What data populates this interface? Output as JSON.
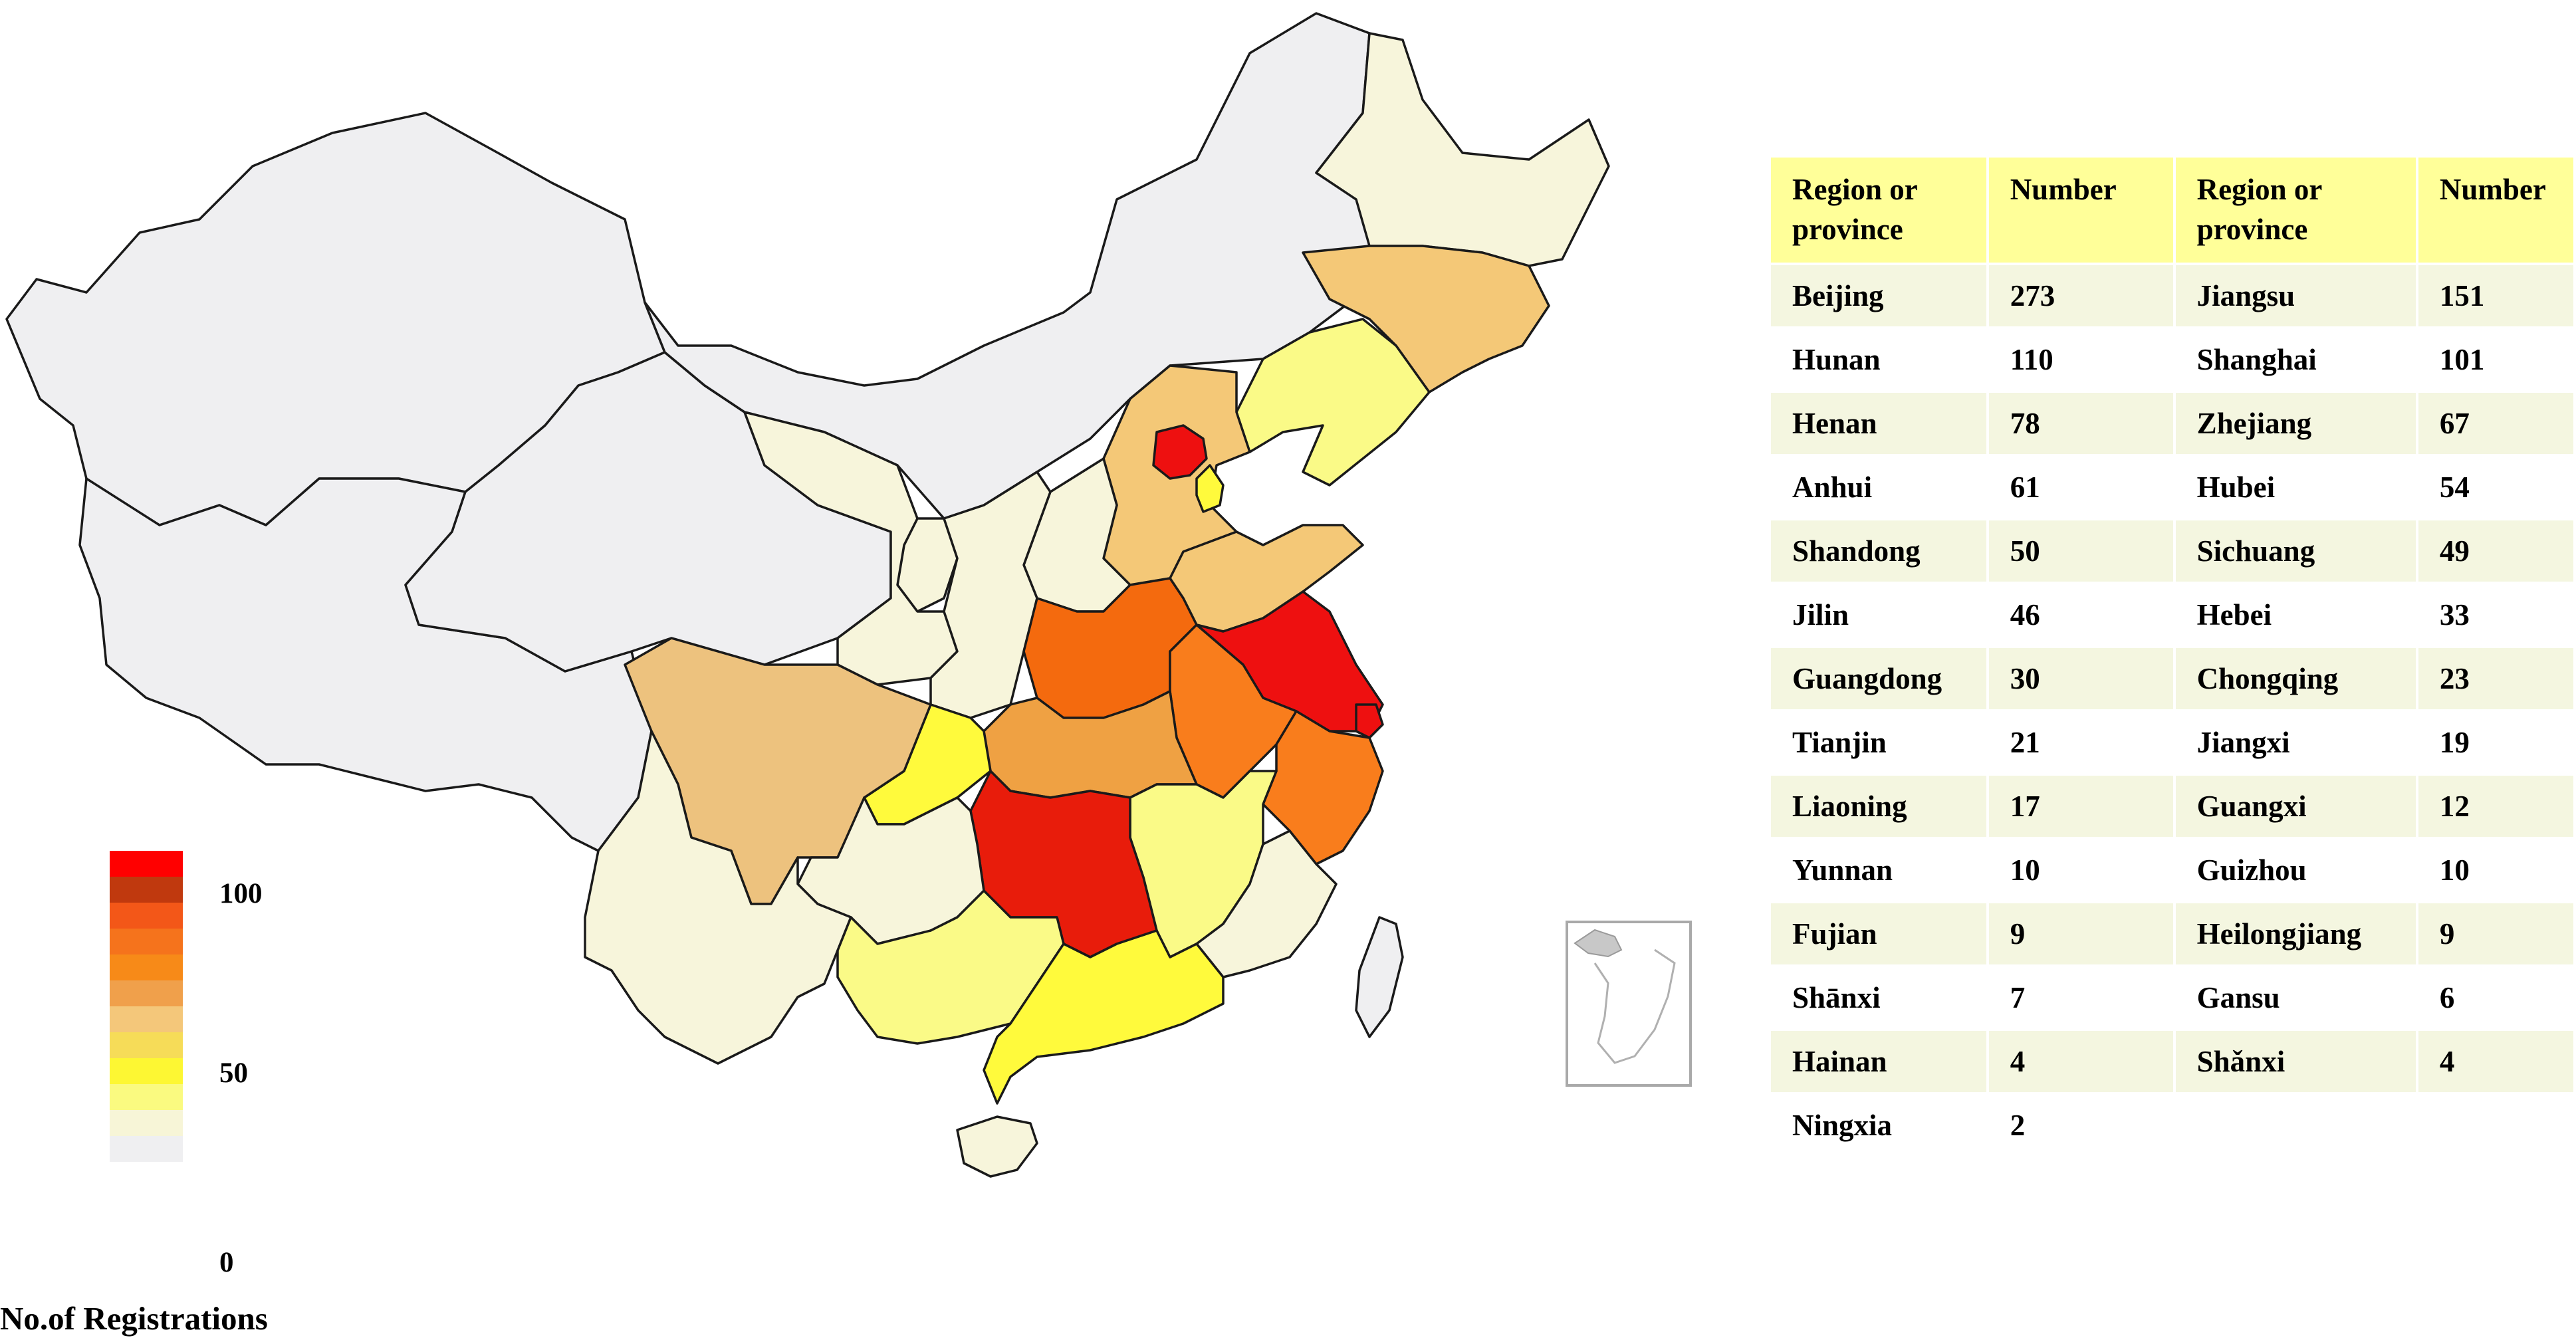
{
  "map": {
    "colors": {
      "no_data": "#efeff1",
      "c2_9": "#f7f5db",
      "c10_20": "#fafa87",
      "c21_30": "#fffa3c",
      "c31_50": "#f4c877",
      "c49": "#edc27e",
      "c54_61": "#efa143",
      "c61_78": "#f97d1c",
      "c78": "#f46a0e",
      "c110": "#e81c0b",
      "c150": "#ee1010",
      "c273": "#ee1010"
    }
  },
  "legend": {
    "title": "No.of Registrations",
    "ticks": [
      "100",
      "50",
      "0"
    ],
    "swatches": [
      "#ff0000",
      "#c0390e",
      "#f35718",
      "#f5731c",
      "#f78a18",
      "#f0a04b",
      "#f4c77a",
      "#f6dc58",
      "#fdf733",
      "#fafa80",
      "#f7f5d7",
      "#efeff1"
    ]
  },
  "table": {
    "headers": [
      "Region or province",
      "Number",
      "Region or province",
      "Number"
    ],
    "rows": [
      [
        "Beijing",
        "273",
        "Jiangsu",
        "151"
      ],
      [
        "Hunan",
        "110",
        "Shanghai",
        "101"
      ],
      [
        "Henan",
        "78",
        "Zhejiang",
        "67"
      ],
      [
        "Anhui",
        "61",
        "Hubei",
        "54"
      ],
      [
        "Shandong",
        "50",
        "Sichuang",
        "49"
      ],
      [
        "Jilin",
        "46",
        "Hebei",
        "33"
      ],
      [
        "Guangdong",
        "30",
        "Chongqing",
        "23"
      ],
      [
        "Tianjin",
        "21",
        "Jiangxi",
        "19"
      ],
      [
        "Liaoning",
        "17",
        "Guangxi",
        "12"
      ],
      [
        "Yunnan",
        "10",
        "Guizhou",
        "10"
      ],
      [
        "Fujian",
        "9",
        "Heilongjiang",
        "9"
      ],
      [
        "Shānxi",
        "7",
        "Gansu",
        "6"
      ],
      [
        "Hainan",
        "4",
        "Shǎnxi",
        "4"
      ],
      [
        "Ningxia",
        "2",
        "",
        ""
      ]
    ]
  }
}
